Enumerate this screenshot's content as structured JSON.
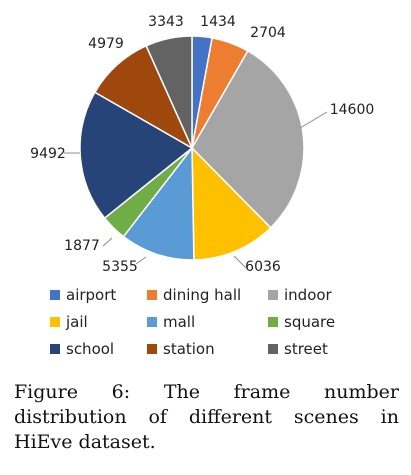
{
  "chart_data": {
    "type": "pie",
    "title": "",
    "categories": [
      "airport",
      "dining hall",
      "indoor",
      "jail",
      "mall",
      "square",
      "school",
      "station",
      "street"
    ],
    "values": [
      1434,
      2704,
      14600,
      6036,
      5355,
      1877,
      9492,
      4979,
      3343
    ],
    "colors": [
      "#4472c4",
      "#ed7d31",
      "#a5a5a5",
      "#ffc000",
      "#5b9bd5",
      "#70ad47",
      "#264478",
      "#9e480e",
      "#636363"
    ],
    "legend": "bottom",
    "data_labels": true
  },
  "caption": "Figure 6: The frame number distribution of different scenes in HiEve dataset."
}
